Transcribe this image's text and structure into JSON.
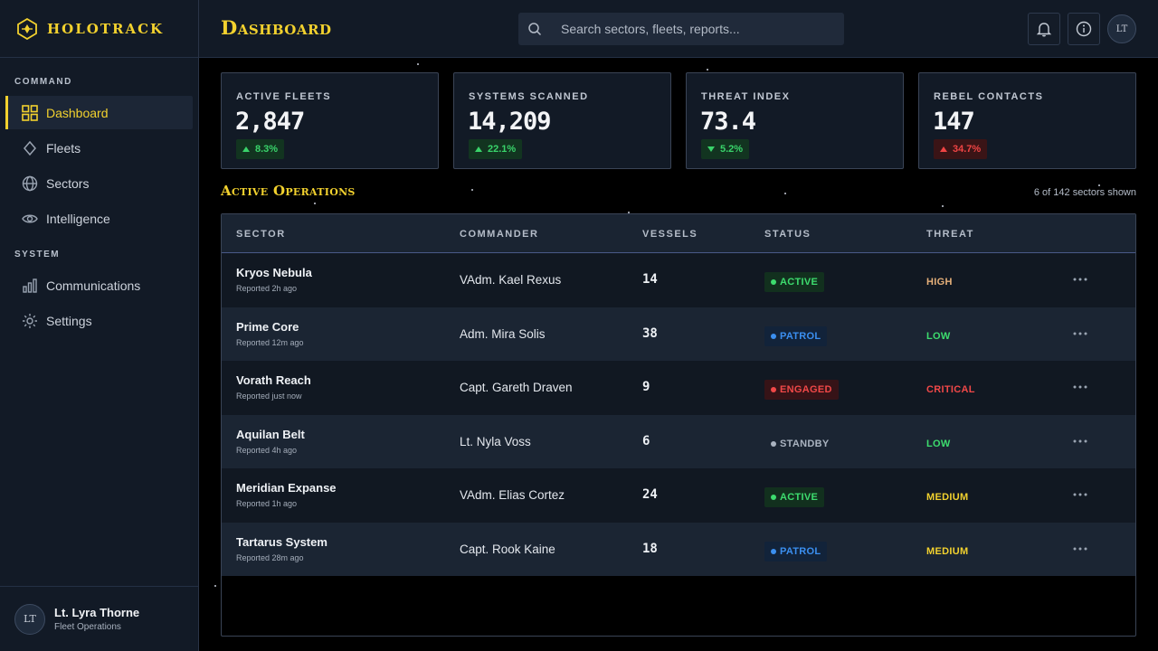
{
  "brand": {
    "name": "HOLOTRACK"
  },
  "header": {
    "title": "Dashboard",
    "search_placeholder": "Search sectors, fleets, reports...",
    "avatar_initials": "LT"
  },
  "sidebar": {
    "sections": [
      {
        "label": "COMMAND",
        "items": [
          {
            "label": "Dashboard",
            "icon": "grid-icon",
            "active": true
          },
          {
            "label": "Fleets",
            "icon": "diamond-icon"
          },
          {
            "label": "Sectors",
            "icon": "globe-icon"
          },
          {
            "label": "Intelligence",
            "icon": "eye-icon"
          }
        ]
      },
      {
        "label": "SYSTEM",
        "items": [
          {
            "label": "Communications",
            "icon": "signal-bars-icon"
          },
          {
            "label": "Settings",
            "icon": "gear-icon"
          }
        ]
      }
    ],
    "user": {
      "initials": "LT",
      "name": "Lt. Lyra Thorne",
      "role": "Fleet Operations"
    }
  },
  "stats": [
    {
      "label": "ACTIVE FLEETS",
      "value": "2,847",
      "change": "8.3%",
      "direction": "up",
      "tone": "good"
    },
    {
      "label": "SYSTEMS SCANNED",
      "value": "14,209",
      "change": "22.1%",
      "direction": "up",
      "tone": "good"
    },
    {
      "label": "THREAT INDEX",
      "value": "73.4",
      "change": "5.2%",
      "direction": "down",
      "tone": "good"
    },
    {
      "label": "REBEL CONTACTS",
      "value": "147",
      "change": "34.7%",
      "direction": "up",
      "tone": "bad"
    }
  ],
  "operations": {
    "title": "Active Operations",
    "meta": "6 of 142 sectors shown",
    "columns": [
      "SECTOR",
      "COMMANDER",
      "VESSELS",
      "STATUS",
      "THREAT"
    ],
    "rows": [
      {
        "sector": "Kryos Nebula",
        "reported": "Reported 2h ago",
        "commander": "VAdm. Kael Rexus",
        "vessels": "14",
        "status": "ACTIVE",
        "threat": "HIGH"
      },
      {
        "sector": "Prime Core",
        "reported": "Reported 12m ago",
        "commander": "Adm. Mira Solis",
        "vessels": "38",
        "status": "PATROL",
        "threat": "LOW"
      },
      {
        "sector": "Vorath Reach",
        "reported": "Reported just now",
        "commander": "Capt. Gareth Draven",
        "vessels": "9",
        "status": "ENGAGED",
        "threat": "CRITICAL"
      },
      {
        "sector": "Aquilan Belt",
        "reported": "Reported 4h ago",
        "commander": "Lt. Nyla Voss",
        "vessels": "6",
        "status": "STANDBY",
        "threat": "LOW"
      },
      {
        "sector": "Meridian Expanse",
        "reported": "Reported 1h ago",
        "commander": "VAdm. Elias Cortez",
        "vessels": "24",
        "status": "ACTIVE",
        "threat": "MEDIUM"
      },
      {
        "sector": "Tartarus System",
        "reported": "Reported 28m ago",
        "commander": "Capt. Rook Kaine",
        "vessels": "18",
        "status": "PATROL",
        "threat": "MEDIUM"
      }
    ]
  },
  "colors": {
    "accent": "#f2d12e",
    "background": "#000000",
    "panel": "#121a26",
    "status_active": "#3ddc6e",
    "status_patrol": "#3b8ff0",
    "status_engaged": "#f04848",
    "status_standby": "#aab3c0"
  }
}
